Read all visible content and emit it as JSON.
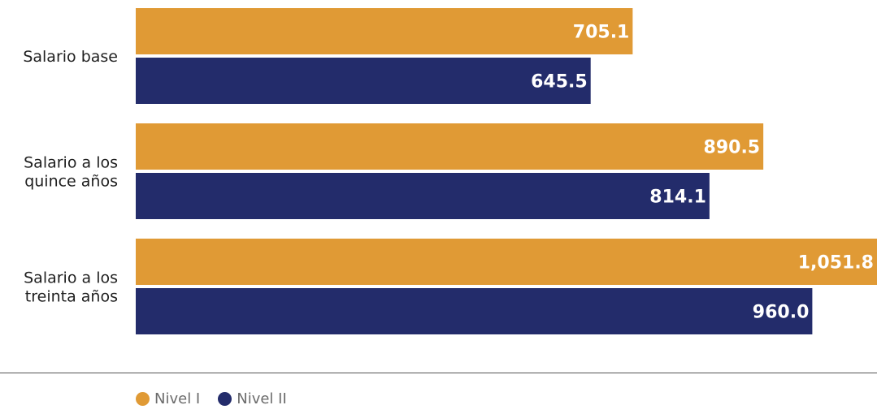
{
  "chart_data": {
    "type": "bar",
    "orientation": "horizontal",
    "categories": [
      [
        "Salario base"
      ],
      [
        "Salario a los",
        "quince años"
      ],
      [
        "Salario a los",
        "treinta años"
      ]
    ],
    "series": [
      {
        "name": "Nivel I",
        "color": "#E09A35",
        "values": [
          705.1,
          890.5,
          1051.8
        ],
        "labels": [
          "705.1",
          "890.5",
          "1,051.8"
        ]
      },
      {
        "name": "Nivel II",
        "color": "#232C6B",
        "values": [
          645.5,
          814.1,
          960.0
        ],
        "labels": [
          "645.5",
          "814.1",
          "960.0"
        ]
      }
    ],
    "title": "",
    "xlabel": "",
    "ylabel": "",
    "grid": false,
    "legend_position": "bottom-left"
  },
  "legend": {
    "items": [
      {
        "label": "Nivel I",
        "color": "#E09A35"
      },
      {
        "label": "Nivel II",
        "color": "#232C6B"
      }
    ]
  },
  "baseline_color": "#555555"
}
